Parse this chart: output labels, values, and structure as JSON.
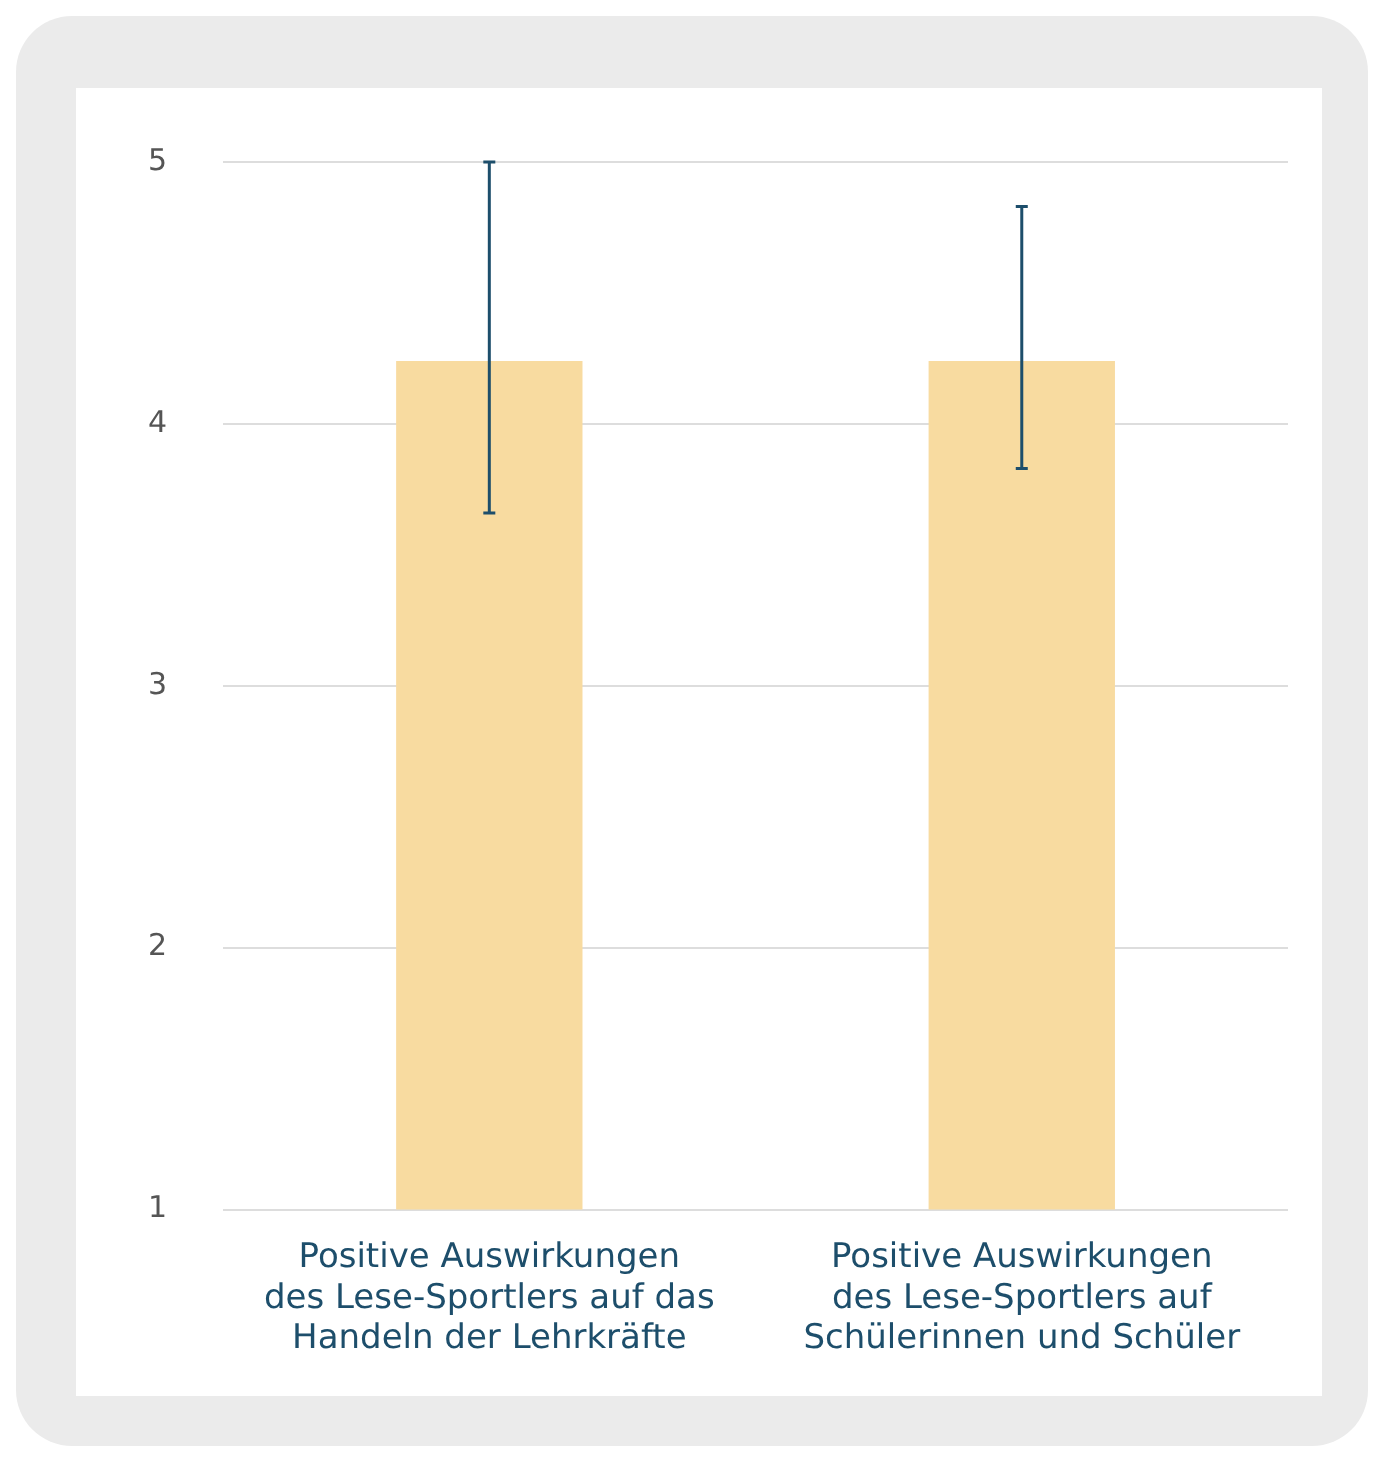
{
  "chart_data": {
    "type": "bar",
    "categories": [
      "Positive Auswirkungen\ndes Lese-Sportlers auf das\nHandeln der Lehrkräfte",
      "Positive Auswirkungen\ndes Lese-Sportlers auf\nSchülerinnen und Schüler"
    ],
    "series": [
      {
        "color": "#f8dba0",
        "values": [
          4.24,
          4.24
        ],
        "errors": [
          [
            3.66,
            5.0
          ],
          [
            3.83,
            4.83
          ]
        ]
      }
    ],
    "ylim": [
      1,
      5
    ],
    "yticks": [
      1,
      2,
      3,
      4,
      5
    ],
    "grid": "y",
    "legend": false
  }
}
